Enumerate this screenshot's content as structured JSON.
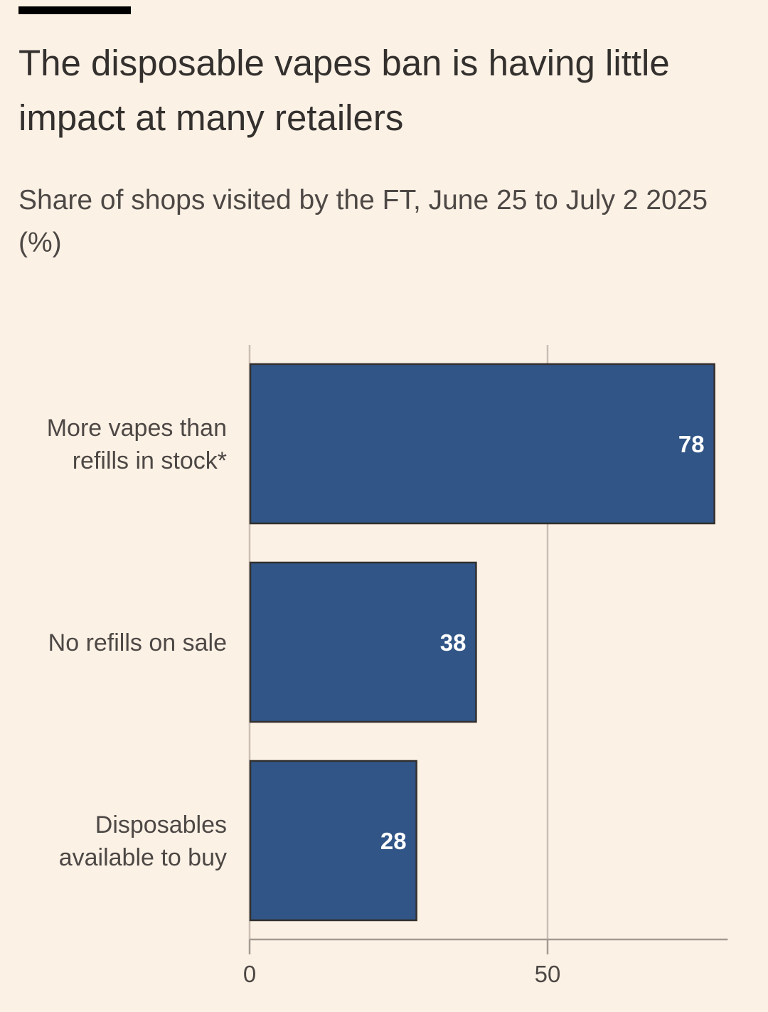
{
  "header": {
    "title": "The disposable vapes ban is having little impact at many retailers",
    "subtitle": "Share of shops visited by the FT, June 25 to July 2 2025 (%)"
  },
  "colors": {
    "background": "#fcf1e5",
    "bar": "#305586",
    "bar_outline": "#33302e",
    "grid": "#c9bfb5",
    "axis": "#a39b93"
  },
  "chart_data": {
    "type": "bar",
    "orientation": "horizontal",
    "title": "The disposable vapes ban is having little impact at many retailers",
    "subtitle": "Share of shops visited by the FT, June 25 to July 2 2025 (%)",
    "categories": [
      [
        "More vapes than",
        "refills in stock*"
      ],
      [
        "No refills on sale"
      ],
      [
        "Disposables",
        "available to buy"
      ]
    ],
    "values": [
      78,
      38,
      28
    ],
    "value_labels": [
      "78",
      "38",
      "28"
    ],
    "xlabel": "",
    "ylabel": "",
    "xlim": [
      0,
      80
    ],
    "xticks": [
      0,
      50
    ],
    "xtick_labels": [
      "0",
      "50"
    ],
    "grid": true,
    "legend": "none"
  }
}
